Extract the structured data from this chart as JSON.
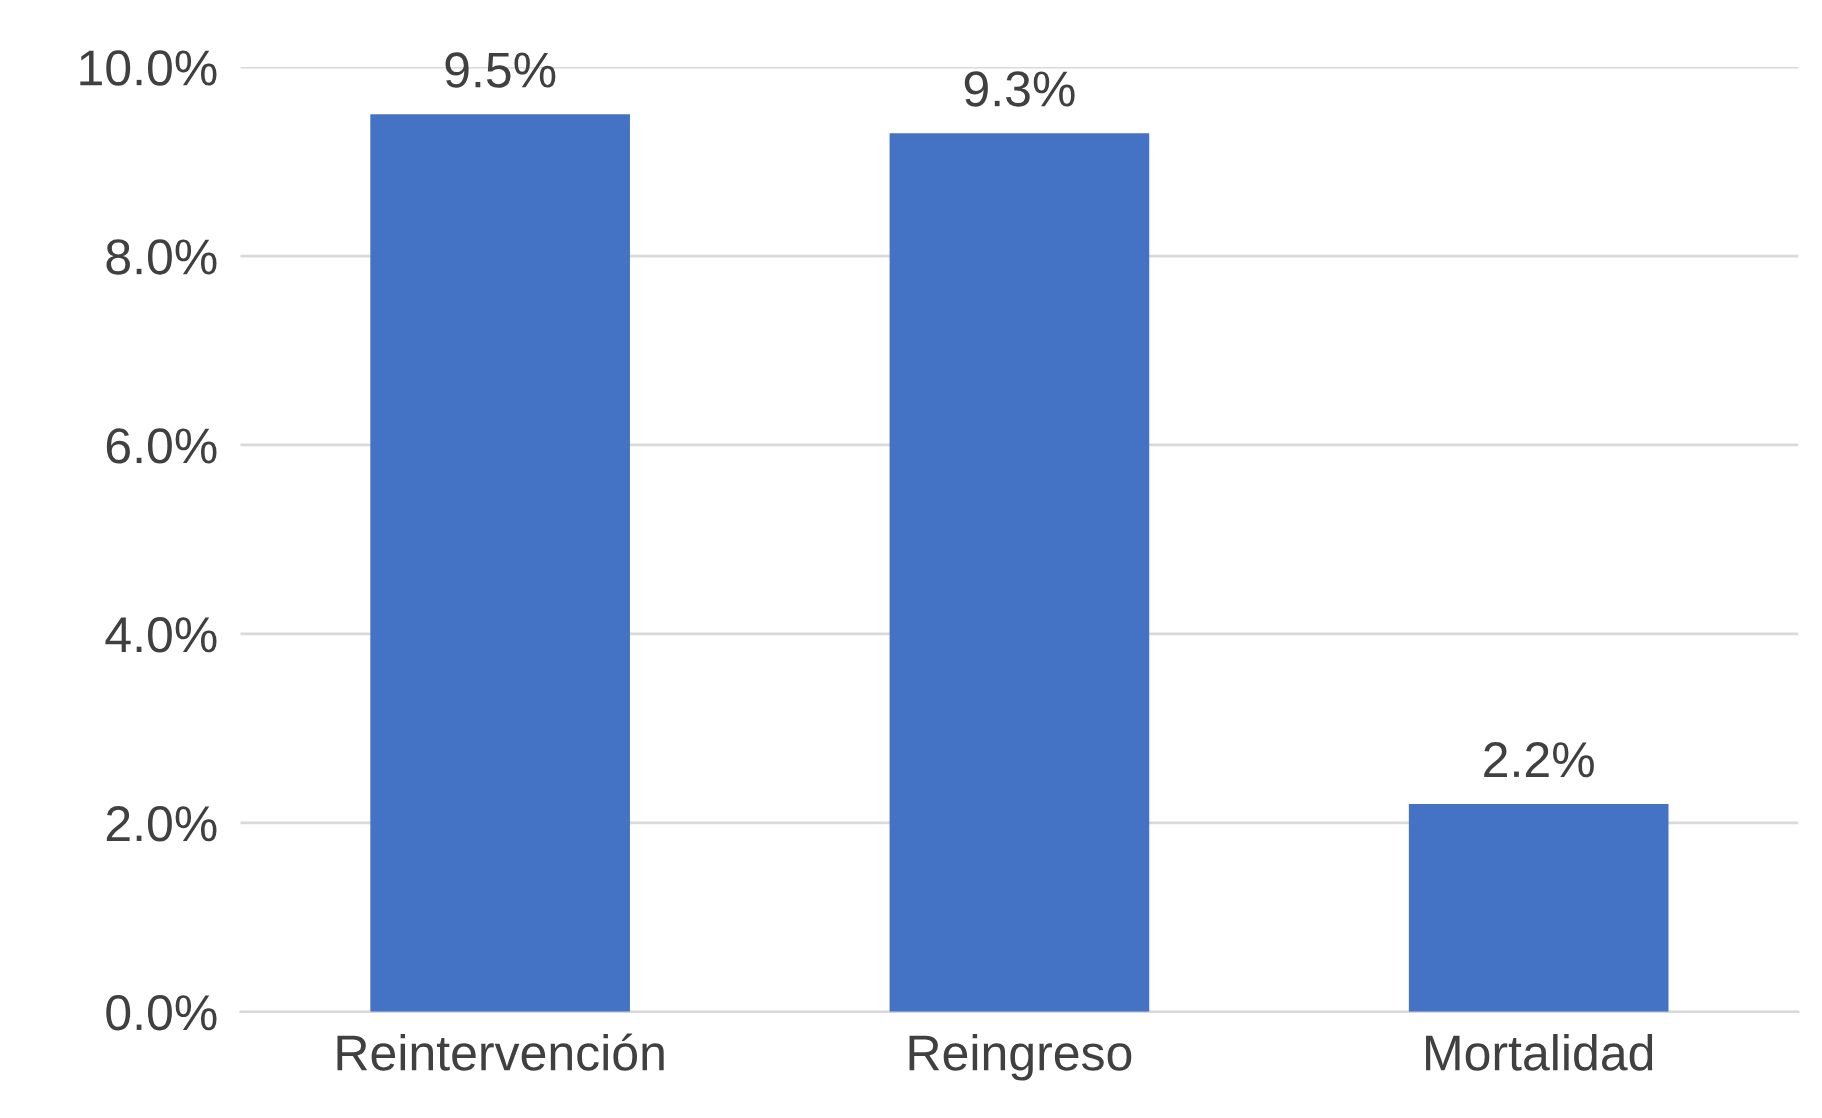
{
  "chart_data": {
    "type": "bar",
    "categories": [
      "Reintervención",
      "Reingreso",
      "Mortalidad"
    ],
    "values": [
      9.5,
      9.3,
      2.2
    ],
    "value_labels": [
      "9.5%",
      "9.3%",
      "2.2%"
    ],
    "color": "#4472c4",
    "ylim": [
      0,
      10
    ],
    "yticks": [
      {
        "value": 0,
        "label": "0.0%"
      },
      {
        "value": 2,
        "label": "2.0%"
      },
      {
        "value": 4,
        "label": "4.0%"
      },
      {
        "value": 6,
        "label": "6.0%"
      },
      {
        "value": 8,
        "label": "8.0%"
      },
      {
        "value": 10,
        "label": "10.0%"
      }
    ],
    "grid": "y",
    "legend": false
  }
}
